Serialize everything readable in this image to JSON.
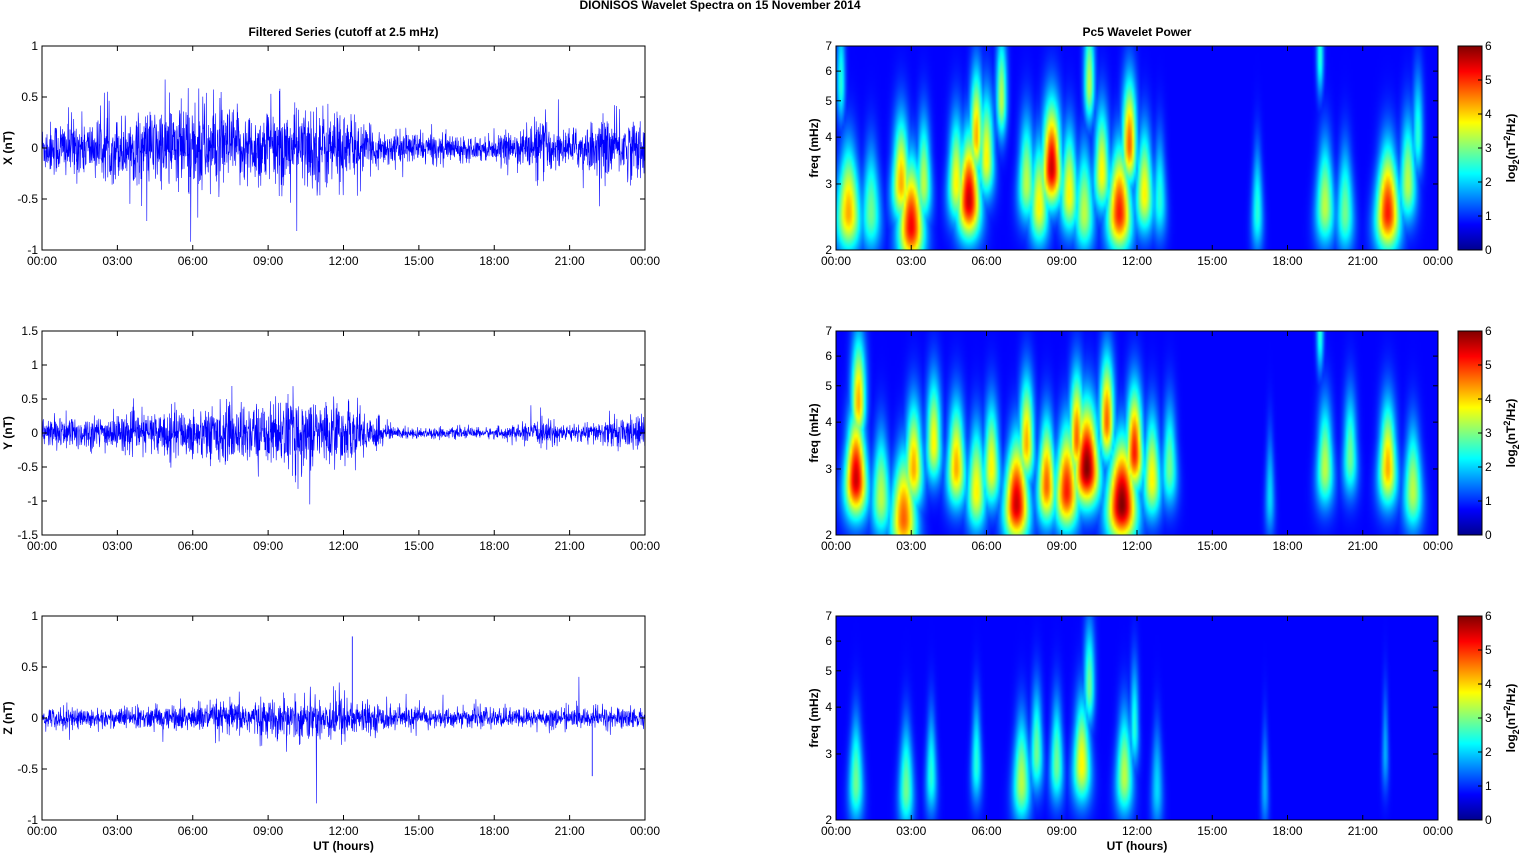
{
  "figure_title": "DIONISOS Wavelet Spectra on 15 November  2014",
  "chart_data": [
    {
      "type": "line",
      "panel": "x-series",
      "title": "Filtered Series (cutoff at 2.5 mHz)",
      "xlabel": "",
      "ylabel": "X (nT)",
      "xlim": [
        0,
        24
      ],
      "ylim": [
        -1,
        1
      ],
      "y_ticks": [
        "-1",
        "-0.5",
        "0",
        "0.5",
        "1"
      ],
      "x_ticks": [
        "00:00",
        "03:00",
        "06:00",
        "09:00",
        "12:00",
        "15:00",
        "18:00",
        "21:00",
        "00:00"
      ],
      "line_color": "#0000ff",
      "activity_profile": [
        {
          "hour": 0,
          "amp": 0.3
        },
        {
          "hour": 1,
          "amp": 0.4
        },
        {
          "hour": 2,
          "amp": 0.35
        },
        {
          "hour": 3,
          "amp": 0.4
        },
        {
          "hour": 4,
          "amp": 0.45
        },
        {
          "hour": 5,
          "amp": 0.55
        },
        {
          "hour": 6,
          "amp": 0.65
        },
        {
          "hour": 7,
          "amp": 0.55
        },
        {
          "hour": 8,
          "amp": 0.45
        },
        {
          "hour": 9,
          "amp": 0.5
        },
        {
          "hour": 10,
          "amp": 0.5
        },
        {
          "hour": 11,
          "amp": 0.55
        },
        {
          "hour": 12,
          "amp": 0.5
        },
        {
          "hour": 13,
          "amp": 0.25
        },
        {
          "hour": 14,
          "amp": 0.2
        },
        {
          "hour": 15,
          "amp": 0.2
        },
        {
          "hour": 16,
          "amp": 0.18
        },
        {
          "hour": 17,
          "amp": 0.15
        },
        {
          "hour": 18,
          "amp": 0.15
        },
        {
          "hour": 19,
          "amp": 0.22
        },
        {
          "hour": 19.8,
          "amp": 0.4
        },
        {
          "hour": 20.5,
          "amp": 0.25
        },
        {
          "hour": 21,
          "amp": 0.22
        },
        {
          "hour": 22,
          "amp": 0.35
        },
        {
          "hour": 23,
          "amp": 0.4
        },
        {
          "hour": 24,
          "amp": 0.35
        }
      ]
    },
    {
      "type": "line",
      "panel": "y-series",
      "title": "",
      "xlabel": "",
      "ylabel": "Y (nT)",
      "xlim": [
        0,
        24
      ],
      "ylim": [
        -1.5,
        1.5
      ],
      "y_ticks": [
        "-1.5",
        "-1",
        "-0.5",
        "0",
        "0.5",
        "1",
        "1.5"
      ],
      "x_ticks": [
        "00:00",
        "03:00",
        "06:00",
        "09:00",
        "12:00",
        "15:00",
        "18:00",
        "21:00",
        "00:00"
      ],
      "line_color": "#0000ff",
      "activity_profile": [
        {
          "hour": 0,
          "amp": 0.25
        },
        {
          "hour": 1,
          "amp": 0.35
        },
        {
          "hour": 2,
          "amp": 0.3
        },
        {
          "hour": 3,
          "amp": 0.35
        },
        {
          "hour": 4,
          "amp": 0.35
        },
        {
          "hour": 5,
          "amp": 0.45
        },
        {
          "hour": 6,
          "amp": 0.45
        },
        {
          "hour": 7,
          "amp": 0.55
        },
        {
          "hour": 8,
          "amp": 0.55
        },
        {
          "hour": 9,
          "amp": 0.55
        },
        {
          "hour": 10,
          "amp": 0.75
        },
        {
          "hour": 11,
          "amp": 0.6
        },
        {
          "hour": 12,
          "amp": 0.6
        },
        {
          "hour": 13,
          "amp": 0.4
        },
        {
          "hour": 14,
          "amp": 0.12
        },
        {
          "hour": 15,
          "amp": 0.1
        },
        {
          "hour": 16,
          "amp": 0.1
        },
        {
          "hour": 17,
          "amp": 0.1
        },
        {
          "hour": 18,
          "amp": 0.1
        },
        {
          "hour": 19,
          "amp": 0.15
        },
        {
          "hour": 20,
          "amp": 0.25
        },
        {
          "hour": 21,
          "amp": 0.15
        },
        {
          "hour": 22,
          "amp": 0.2
        },
        {
          "hour": 23,
          "amp": 0.3
        },
        {
          "hour": 24,
          "amp": 0.3
        }
      ]
    },
    {
      "type": "line",
      "panel": "z-series",
      "title": "",
      "xlabel": "UT (hours)",
      "ylabel": "Z (nT)",
      "xlim": [
        0,
        24
      ],
      "ylim": [
        -1,
        1
      ],
      "y_ticks": [
        "-1",
        "-0.5",
        "0",
        "0.5",
        "1"
      ],
      "x_ticks": [
        "00:00",
        "03:00",
        "06:00",
        "09:00",
        "12:00",
        "15:00",
        "18:00",
        "21:00",
        "00:00"
      ],
      "line_color": "#0000ff",
      "activity_profile": [
        {
          "hour": 0,
          "amp": 0.12
        },
        {
          "hour": 1,
          "amp": 0.15
        },
        {
          "hour": 2,
          "amp": 0.12
        },
        {
          "hour": 3,
          "amp": 0.13
        },
        {
          "hour": 4,
          "amp": 0.15
        },
        {
          "hour": 5,
          "amp": 0.15
        },
        {
          "hour": 6,
          "amp": 0.18
        },
        {
          "hour": 7,
          "amp": 0.2
        },
        {
          "hour": 8,
          "amp": 0.22
        },
        {
          "hour": 9,
          "amp": 0.22
        },
        {
          "hour": 10,
          "amp": 0.25
        },
        {
          "hour": 11,
          "amp": 0.3
        },
        {
          "hour": 12,
          "amp": 0.3
        },
        {
          "hour": 13,
          "amp": 0.18
        },
        {
          "hour": 14,
          "amp": 0.15
        },
        {
          "hour": 15,
          "amp": 0.13
        },
        {
          "hour": 16,
          "amp": 0.12
        },
        {
          "hour": 17,
          "amp": 0.12
        },
        {
          "hour": 18,
          "amp": 0.12
        },
        {
          "hour": 19,
          "amp": 0.12
        },
        {
          "hour": 20,
          "amp": 0.13
        },
        {
          "hour": 21,
          "amp": 0.12
        },
        {
          "hour": 22,
          "amp": 0.14
        },
        {
          "hour": 23,
          "amp": 0.14
        },
        {
          "hour": 24,
          "amp": 0.12
        }
      ],
      "spikes": [
        {
          "hour": 12.35,
          "value": 0.8
        },
        {
          "hour": 21.9,
          "value": -0.57
        }
      ]
    },
    {
      "type": "heatmap",
      "panel": "x-wavelet",
      "title": "Pc5 Wavelet Power",
      "xlabel": "",
      "ylabel": "freq (mHz)",
      "xlim": [
        0,
        24
      ],
      "ylim": [
        2,
        7
      ],
      "y_scale": "log",
      "y_ticks": [
        "2",
        "3",
        "4",
        "5",
        "6",
        "7"
      ],
      "x_ticks": [
        "00:00",
        "03:00",
        "06:00",
        "09:00",
        "12:00",
        "15:00",
        "18:00",
        "21:00",
        "00:00"
      ],
      "colorbar": {
        "label": "log2(nT2/Hz)",
        "range": [
          0,
          6
        ],
        "ticks": [
          "0",
          "1",
          "2",
          "3",
          "4",
          "5",
          "6"
        ],
        "colormap": "jet"
      },
      "blobs": [
        {
          "t": 0.5,
          "f": 2.5,
          "p": 4.0,
          "w": 0.25
        },
        {
          "t": 0.2,
          "f": 5.5,
          "p": 2.0,
          "w": 0.12
        },
        {
          "t": 1.4,
          "f": 2.5,
          "p": 2.5,
          "w": 0.2
        },
        {
          "t": 2.6,
          "f": 3.0,
          "p": 4.0,
          "w": 0.22
        },
        {
          "t": 3.0,
          "f": 2.3,
          "p": 5.2,
          "w": 0.25
        },
        {
          "t": 3.5,
          "f": 3.0,
          "p": 3.0,
          "w": 0.18
        },
        {
          "t": 4.8,
          "f": 3.0,
          "p": 3.5,
          "w": 0.2
        },
        {
          "t": 5.3,
          "f": 2.7,
          "p": 5.5,
          "w": 0.25
        },
        {
          "t": 5.6,
          "f": 4.0,
          "p": 4.0,
          "w": 0.18
        },
        {
          "t": 6.0,
          "f": 3.5,
          "p": 3.5,
          "w": 0.2
        },
        {
          "t": 6.6,
          "f": 5.0,
          "p": 3.0,
          "w": 0.15
        },
        {
          "t": 7.6,
          "f": 3.0,
          "p": 3.0,
          "w": 0.2
        },
        {
          "t": 8.1,
          "f": 2.6,
          "p": 3.5,
          "w": 0.2
        },
        {
          "t": 8.6,
          "f": 3.3,
          "p": 5.5,
          "w": 0.25
        },
        {
          "t": 9.3,
          "f": 2.8,
          "p": 3.5,
          "w": 0.2
        },
        {
          "t": 9.9,
          "f": 2.5,
          "p": 3.0,
          "w": 0.2
        },
        {
          "t": 10.1,
          "f": 5.5,
          "p": 3.0,
          "w": 0.15
        },
        {
          "t": 10.6,
          "f": 3.2,
          "p": 3.5,
          "w": 0.2
        },
        {
          "t": 11.3,
          "f": 2.5,
          "p": 5.0,
          "w": 0.25
        },
        {
          "t": 11.7,
          "f": 3.8,
          "p": 4.5,
          "w": 0.2
        },
        {
          "t": 12.3,
          "f": 2.8,
          "p": 3.5,
          "w": 0.2
        },
        {
          "t": 12.9,
          "f": 2.7,
          "p": 2.0,
          "w": 0.15
        },
        {
          "t": 16.8,
          "f": 2.5,
          "p": 2.0,
          "w": 0.12
        },
        {
          "t": 19.5,
          "f": 2.6,
          "p": 3.0,
          "w": 0.2
        },
        {
          "t": 19.3,
          "f": 6.5,
          "p": 2.0,
          "w": 0.1
        },
        {
          "t": 20.3,
          "f": 2.5,
          "p": 2.5,
          "w": 0.18
        },
        {
          "t": 22.0,
          "f": 2.5,
          "p": 5.0,
          "w": 0.25
        },
        {
          "t": 22.8,
          "f": 3.0,
          "p": 3.0,
          "w": 0.2
        },
        {
          "t": 23.2,
          "f": 4.0,
          "p": 2.0,
          "w": 0.15
        }
      ]
    },
    {
      "type": "heatmap",
      "panel": "y-wavelet",
      "title": "",
      "xlabel": "",
      "ylabel": "freq (mHz)",
      "xlim": [
        0,
        24
      ],
      "ylim": [
        2,
        7
      ],
      "y_scale": "log",
      "y_ticks": [
        "2",
        "3",
        "4",
        "5",
        "6",
        "7"
      ],
      "x_ticks": [
        "00:00",
        "03:00",
        "06:00",
        "09:00",
        "12:00",
        "15:00",
        "18:00",
        "21:00",
        "00:00"
      ],
      "colorbar": {
        "label": "log2(nT2/Hz)",
        "range": [
          0,
          6
        ],
        "ticks": [
          "0",
          "1",
          "2",
          "3",
          "4",
          "5",
          "6"
        ],
        "colormap": "jet"
      },
      "blobs": [
        {
          "t": 0.8,
          "f": 2.8,
          "p": 5.5,
          "w": 0.25
        },
        {
          "t": 0.9,
          "f": 4.5,
          "p": 4.0,
          "w": 0.2
        },
        {
          "t": 1.8,
          "f": 2.5,
          "p": 3.0,
          "w": 0.2
        },
        {
          "t": 2.7,
          "f": 2.2,
          "p": 4.5,
          "w": 0.25
        },
        {
          "t": 3.1,
          "f": 3.0,
          "p": 4.0,
          "w": 0.22
        },
        {
          "t": 3.9,
          "f": 3.5,
          "p": 3.5,
          "w": 0.2
        },
        {
          "t": 4.8,
          "f": 3.0,
          "p": 4.0,
          "w": 0.22
        },
        {
          "t": 5.6,
          "f": 2.6,
          "p": 3.5,
          "w": 0.2
        },
        {
          "t": 6.2,
          "f": 3.0,
          "p": 3.5,
          "w": 0.2
        },
        {
          "t": 7.2,
          "f": 2.4,
          "p": 5.5,
          "w": 0.25
        },
        {
          "t": 7.6,
          "f": 3.5,
          "p": 4.0,
          "w": 0.2
        },
        {
          "t": 8.4,
          "f": 2.7,
          "p": 4.5,
          "w": 0.2
        },
        {
          "t": 9.2,
          "f": 2.6,
          "p": 5.0,
          "w": 0.25
        },
        {
          "t": 9.6,
          "f": 3.6,
          "p": 4.5,
          "w": 0.2
        },
        {
          "t": 10.0,
          "f": 3.0,
          "p": 6.0,
          "w": 0.3
        },
        {
          "t": 10.8,
          "f": 4.0,
          "p": 4.5,
          "w": 0.2
        },
        {
          "t": 11.4,
          "f": 2.4,
          "p": 6.0,
          "w": 0.3
        },
        {
          "t": 11.9,
          "f": 3.3,
          "p": 5.0,
          "w": 0.22
        },
        {
          "t": 12.6,
          "f": 2.8,
          "p": 3.5,
          "w": 0.2
        },
        {
          "t": 13.3,
          "f": 3.0,
          "p": 2.5,
          "w": 0.18
        },
        {
          "t": 17.3,
          "f": 2.5,
          "p": 1.5,
          "w": 0.1
        },
        {
          "t": 19.5,
          "f": 3.0,
          "p": 3.0,
          "w": 0.2
        },
        {
          "t": 20.5,
          "f": 3.2,
          "p": 2.5,
          "w": 0.18
        },
        {
          "t": 22.0,
          "f": 3.0,
          "p": 4.0,
          "w": 0.22
        },
        {
          "t": 23.0,
          "f": 2.6,
          "p": 3.0,
          "w": 0.2
        },
        {
          "t": 19.3,
          "f": 6.8,
          "p": 2.0,
          "w": 0.1
        }
      ]
    },
    {
      "type": "heatmap",
      "panel": "z-wavelet",
      "title": "",
      "xlabel": "UT (hours)",
      "ylabel": "freq (mHz)",
      "xlim": [
        0,
        24
      ],
      "ylim": [
        2,
        7
      ],
      "y_scale": "log",
      "y_ticks": [
        "2",
        "3",
        "4",
        "5",
        "6",
        "7"
      ],
      "x_ticks": [
        "00:00",
        "03:00",
        "06:00",
        "09:00",
        "12:00",
        "15:00",
        "18:00",
        "21:00",
        "00:00"
      ],
      "colorbar": {
        "label": "log2(nT2/Hz)",
        "range": [
          0,
          6
        ],
        "ticks": [
          "0",
          "1",
          "2",
          "3",
          "4",
          "5",
          "6"
        ],
        "colormap": "jet"
      },
      "blobs": [
        {
          "t": 0.8,
          "f": 2.5,
          "p": 2.5,
          "w": 0.15
        },
        {
          "t": 2.8,
          "f": 2.4,
          "p": 2.5,
          "w": 0.15
        },
        {
          "t": 3.8,
          "f": 2.6,
          "p": 2.0,
          "w": 0.12
        },
        {
          "t": 5.6,
          "f": 2.8,
          "p": 2.0,
          "w": 0.12
        },
        {
          "t": 7.4,
          "f": 2.5,
          "p": 3.0,
          "w": 0.18
        },
        {
          "t": 8.0,
          "f": 3.0,
          "p": 2.5,
          "w": 0.15
        },
        {
          "t": 8.8,
          "f": 2.8,
          "p": 2.5,
          "w": 0.15
        },
        {
          "t": 9.8,
          "f": 2.8,
          "p": 3.5,
          "w": 0.2
        },
        {
          "t": 10.1,
          "f": 4.5,
          "p": 2.5,
          "w": 0.15
        },
        {
          "t": 11.5,
          "f": 2.6,
          "p": 3.0,
          "w": 0.18
        },
        {
          "t": 11.9,
          "f": 3.5,
          "p": 2.0,
          "w": 0.12
        },
        {
          "t": 12.8,
          "f": 2.4,
          "p": 1.5,
          "w": 0.12
        },
        {
          "t": 17.1,
          "f": 2.4,
          "p": 1.2,
          "w": 0.08
        },
        {
          "t": 21.9,
          "f": 3.0,
          "p": 1.2,
          "w": 0.08
        }
      ]
    }
  ]
}
